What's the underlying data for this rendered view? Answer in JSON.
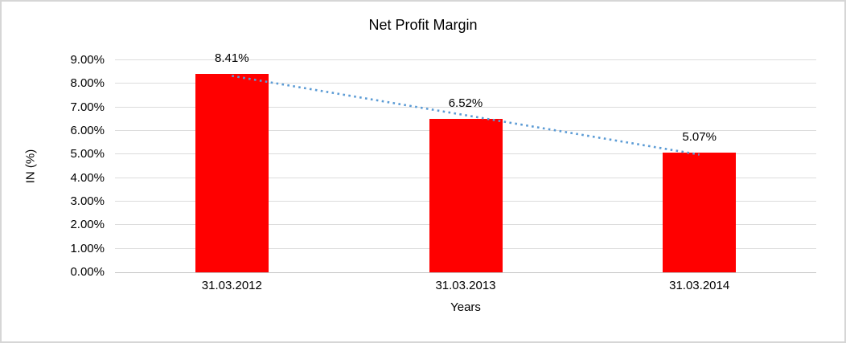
{
  "chart_data": {
    "type": "bar",
    "title": "Net Profit Margin",
    "xlabel": "Years",
    "ylabel": "IN (%)",
    "categories": [
      "31.03.2012",
      "31.03.2013",
      "31.03.2014"
    ],
    "values": [
      8.41,
      6.52,
      5.07
    ],
    "data_labels": [
      "8.41%",
      "6.52%",
      "5.07%"
    ],
    "ylim": [
      0,
      9
    ],
    "ytick_step": 1,
    "ytick_labels": [
      "0.00%",
      "1.00%",
      "2.00%",
      "3.00%",
      "4.00%",
      "5.00%",
      "6.00%",
      "7.00%",
      "8.00%",
      "9.00%"
    ],
    "grid": true,
    "legend": "none",
    "bar_color": "#ff0000",
    "gridline_color": "#dcdcdc",
    "axis_line_color": "#c3c3c3",
    "trendline": {
      "type": "linear",
      "style": "dotted",
      "color": "#5b9bd5"
    }
  },
  "frame": {
    "background": "#ffffff",
    "border_color": "#d6d6d6"
  }
}
